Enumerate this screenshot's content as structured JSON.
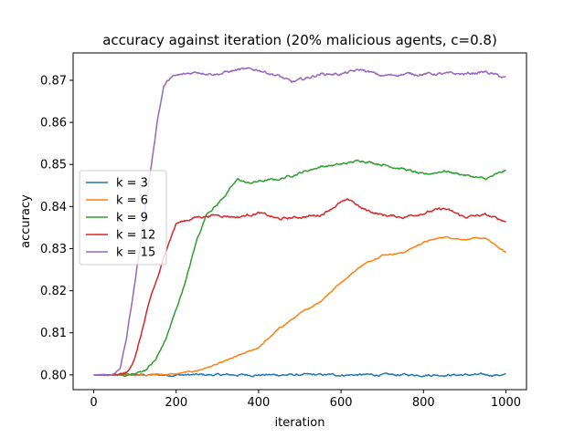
{
  "chart_data": {
    "type": "line",
    "title": "accuracy against iteration (20% malicious agents, c=0.8)",
    "xlabel": "iteration",
    "ylabel": "accuracy",
    "xlim": [
      -50,
      1050
    ],
    "ylim": [
      0.7965,
      0.8765
    ],
    "xticks": [
      0,
      200,
      400,
      600,
      800,
      1000
    ],
    "xtick_labels": [
      "0",
      "200",
      "400",
      "600",
      "800",
      "1000"
    ],
    "yticks": [
      0.8,
      0.81,
      0.82,
      0.83,
      0.84,
      0.85,
      0.86,
      0.87
    ],
    "ytick_labels": [
      "0.80",
      "0.81",
      "0.82",
      "0.83",
      "0.84",
      "0.85",
      "0.86",
      "0.87"
    ],
    "grid": false,
    "legend_position": "center-left",
    "series": [
      {
        "name": "k = 3",
        "color": "#1f77b4",
        "x": [
          0,
          1000
        ],
        "y": [
          0.8,
          0.8
        ]
      },
      {
        "name": "k = 6",
        "color": "#ff7f0e",
        "x": [
          0,
          100,
          200,
          250,
          300,
          350,
          400,
          450,
          500,
          550,
          600,
          650,
          700,
          750,
          800,
          850,
          900,
          950,
          1000
        ],
        "y": [
          0.8,
          0.8,
          0.8002,
          0.801,
          0.8025,
          0.8045,
          0.8065,
          0.811,
          0.8145,
          0.8175,
          0.822,
          0.826,
          0.8285,
          0.829,
          0.8315,
          0.8328,
          0.8322,
          0.8325,
          0.829
        ]
      },
      {
        "name": "k = 9",
        "color": "#2ca02c",
        "x": [
          0,
          80,
          100,
          125,
          150,
          175,
          200,
          225,
          250,
          275,
          300,
          325,
          350,
          375,
          400,
          450,
          500,
          550,
          600,
          625,
          650,
          700,
          750,
          800,
          850,
          900,
          950,
          1000
        ],
        "y": [
          0.8,
          0.8,
          0.8002,
          0.8012,
          0.8035,
          0.8085,
          0.8155,
          0.823,
          0.832,
          0.8385,
          0.8405,
          0.8435,
          0.8465,
          0.8455,
          0.846,
          0.8465,
          0.848,
          0.8495,
          0.85,
          0.8505,
          0.851,
          0.85,
          0.849,
          0.8475,
          0.8485,
          0.8475,
          0.8465,
          0.8485
        ]
      },
      {
        "name": "k = 12",
        "color": "#d62728",
        "x": [
          0,
          50,
          80,
          100,
          120,
          140,
          160,
          180,
          200,
          250,
          300,
          350,
          400,
          450,
          500,
          550,
          600,
          625,
          650,
          700,
          750,
          800,
          850,
          900,
          950,
          1000
        ],
        "y": [
          0.8,
          0.8,
          0.8005,
          0.804,
          0.8115,
          0.819,
          0.8245,
          0.831,
          0.836,
          0.8375,
          0.838,
          0.8375,
          0.8385,
          0.837,
          0.8375,
          0.838,
          0.841,
          0.8415,
          0.8395,
          0.838,
          0.8375,
          0.8385,
          0.8395,
          0.8375,
          0.838,
          0.8365
        ]
      },
      {
        "name": "k = 15",
        "color": "#9467bd",
        "x": [
          0,
          50,
          65,
          80,
          100,
          120,
          140,
          155,
          170,
          185,
          200,
          250,
          300,
          350,
          400,
          450,
          480,
          500,
          550,
          600,
          650,
          700,
          750,
          800,
          850,
          900,
          950,
          1000
        ],
        "y": [
          0.8,
          0.8002,
          0.802,
          0.809,
          0.822,
          0.836,
          0.85,
          0.861,
          0.8685,
          0.8705,
          0.871,
          0.872,
          0.8715,
          0.8725,
          0.8725,
          0.871,
          0.8695,
          0.87,
          0.8715,
          0.8715,
          0.8725,
          0.871,
          0.8715,
          0.8715,
          0.8715,
          0.8715,
          0.872,
          0.8705
        ]
      }
    ]
  }
}
